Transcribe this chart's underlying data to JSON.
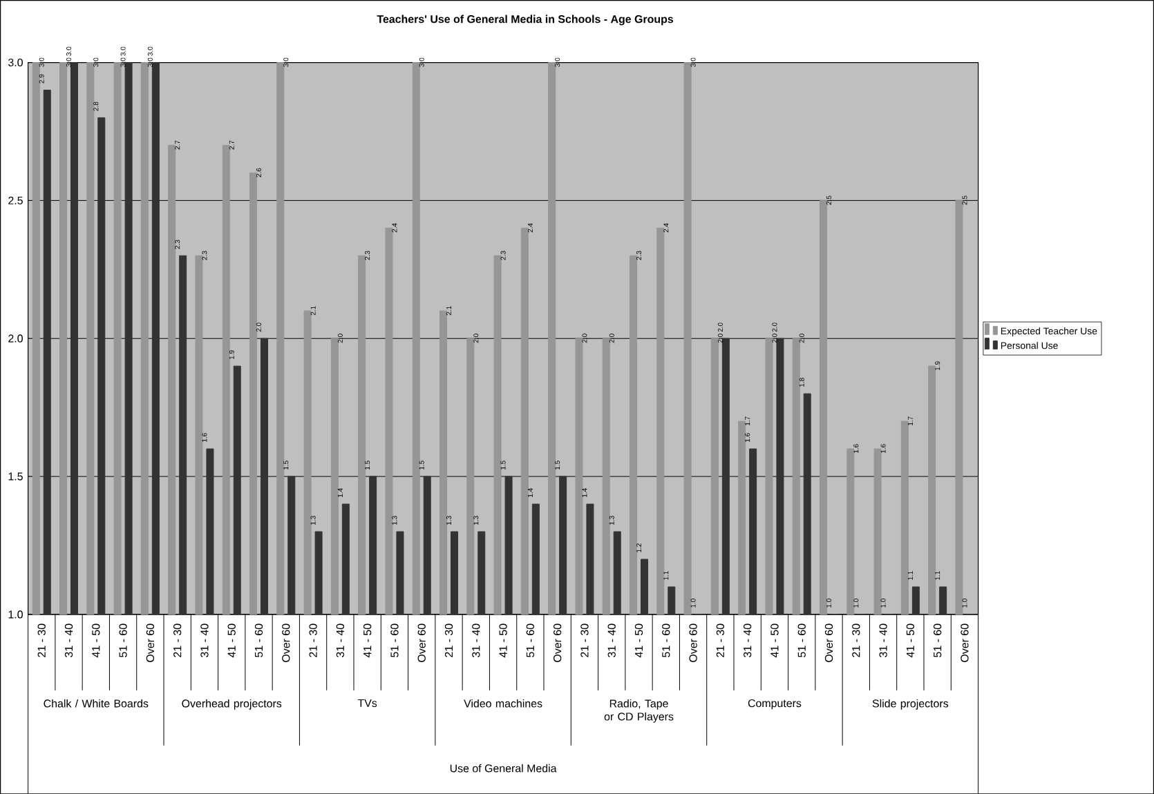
{
  "chart_data": {
    "type": "bar",
    "title": "Teachers' Use of General Media in Schools - Age Groups",
    "categories": [
      "21 - 30",
      "31 - 40",
      "41 - 50",
      "51 - 60",
      "Over 60",
      "21 - 30",
      "31 - 40",
      "41 - 50",
      "51 - 60",
      "Over 60",
      "21 - 30",
      "31 - 40",
      "41 - 50",
      "51 - 60",
      "Over 60",
      "21 - 30",
      "31 - 40",
      "41 - 50",
      "51 - 60",
      "Over 60",
      "21 - 30",
      "31 - 40",
      "41 - 50",
      "51 - 60",
      "Over 60",
      "21 - 30",
      "31 - 40",
      "41 - 50",
      "51 - 60",
      "Over 60",
      "21 - 30",
      "31 - 40",
      "41 - 50",
      "51 - 60",
      "Over 60"
    ],
    "annotations": [
      "Chalk / White Boards",
      "Overhead projectors",
      "TVs",
      "Video machines",
      "Radio, Tape or CD Players",
      "Computers",
      "Slide projectors",
      "Use of General Media"
    ],
    "series": [
      {
        "name": "Expected Teacher Use",
        "color": "#969696",
        "values": [
          3.0,
          3.0,
          3.0,
          3.0,
          3.0,
          2.7,
          2.3,
          2.7,
          2.6,
          3.0,
          2.1,
          2.0,
          2.3,
          2.4,
          3.0,
          2.1,
          2.0,
          2.3,
          2.4,
          3.0,
          2.0,
          2.0,
          2.3,
          2.4,
          3.0,
          2.0,
          1.7,
          2.0,
          2.0,
          2.5,
          1.6,
          1.6,
          1.7,
          1.9,
          2.5
        ],
        "value_labels": [
          "3.0",
          "3.0",
          "3.0",
          "3.0",
          "3.0",
          "2.7",
          "2.3",
          "2.7",
          "2.6",
          "3.0",
          "2.1",
          "2.0",
          "2.3",
          "2.4",
          "3.0",
          "2.1",
          "2.0",
          "2.3",
          "2.4",
          "3.0",
          "2.0",
          "2.0",
          "2.3",
          "2.4",
          "3.0",
          "2.0",
          "1.7",
          "2.0",
          "2.0",
          "2.5",
          "1.6",
          "1.6",
          "1.7",
          "1.9",
          "2.5"
        ]
      },
      {
        "name": "Personal Use",
        "color": "#333333",
        "values": [
          2.9,
          3.0,
          2.8,
          3.0,
          3.0,
          2.3,
          1.6,
          1.9,
          2.0,
          1.5,
          1.3,
          1.4,
          1.5,
          1.3,
          1.5,
          1.3,
          1.3,
          1.5,
          1.4,
          1.5,
          1.4,
          1.3,
          1.2,
          1.1,
          1.0,
          2.0,
          1.6,
          2.0,
          1.8,
          1.0,
          1.0,
          1.0,
          1.1,
          1.1,
          1.0
        ],
        "value_labels": [
          "2.9",
          "3.0",
          "2.8",
          "3.0",
          "3.0",
          "2.3",
          "1.6",
          "1.9",
          "2.0",
          "1.5",
          "1.3",
          "1.4",
          "1.5",
          "1.3",
          "1.5",
          "1.3",
          "1.3",
          "1.5",
          "1.4",
          "1.5",
          "1.4",
          "1.3",
          "1.2",
          "1.1",
          "1.0",
          "2.0",
          "1.6",
          "2.0",
          "1.8",
          "1.0",
          "1.0",
          "1.0",
          "1.1",
          "1.1",
          "1.0"
        ]
      }
    ],
    "ylim": [
      1.0,
      3.0
    ],
    "yticks": [
      {
        "value": 1.0,
        "label": "1.0"
      },
      {
        "value": 1.5,
        "label": "1.5"
      },
      {
        "value": 2.0,
        "label": "2.0"
      },
      {
        "value": 2.5,
        "label": "2.5"
      },
      {
        "value": 3.0,
        "label": "3.0"
      }
    ],
    "grid": "y",
    "legend": "right"
  }
}
